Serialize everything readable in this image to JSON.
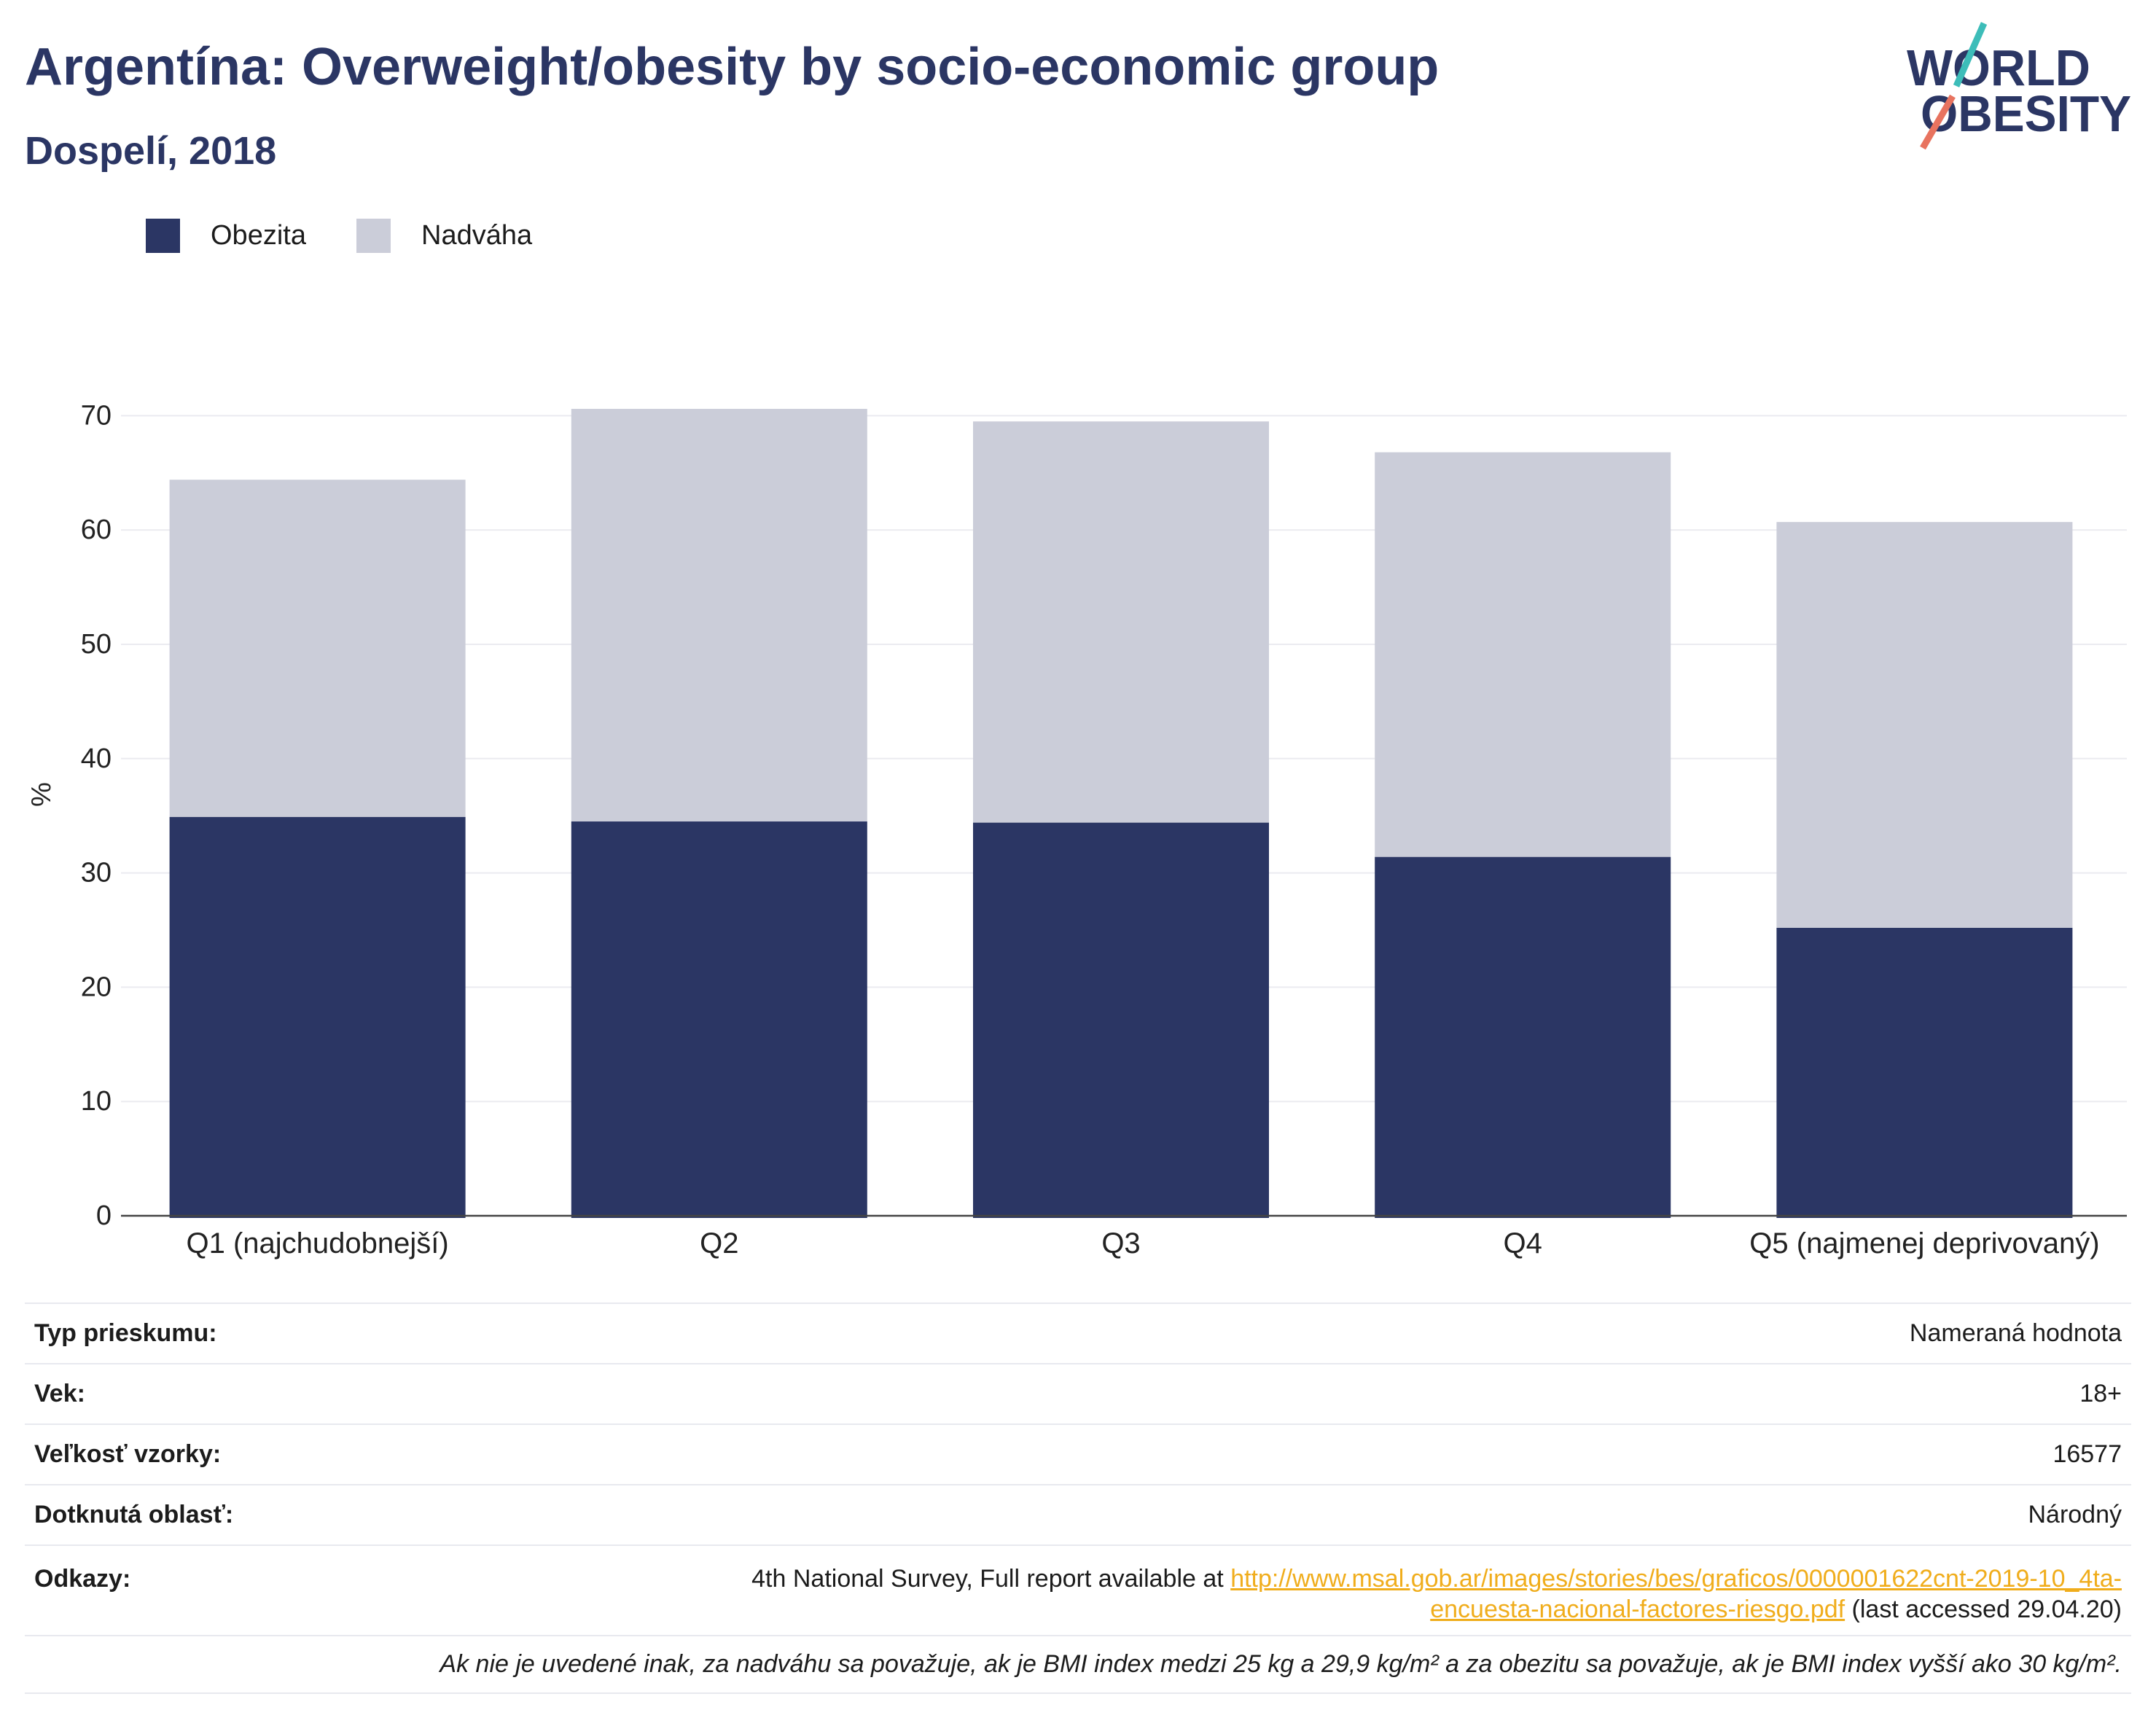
{
  "theme": {
    "navy": "#2b3664",
    "grid": "#ebebf0",
    "axis": "#444444",
    "link": "#f0ad1c"
  },
  "logo": {
    "line1": "WORLD",
    "line2": "OBESITY",
    "teal": "#3dbdb9",
    "coral": "#e8735f"
  },
  "chart_data": {
    "type": "bar",
    "stacked": true,
    "title": "Argentína: Overweight/obesity by socio-economic group",
    "subtitle": "Dospelí, 2018",
    "categories": [
      "Q1 (najchudobnejší)",
      "Q2",
      "Q3",
      "Q4",
      "Q5 (najmenej deprivovaný)"
    ],
    "series": [
      {
        "name": "Obezita",
        "color": "#2b3664",
        "values": [
          34.9,
          34.5,
          34.4,
          31.4,
          25.2
        ]
      },
      {
        "name": "Nadváha",
        "color": "#cbcdd9",
        "values": [
          29.5,
          36.1,
          35.1,
          35.4,
          35.5
        ]
      }
    ],
    "ylabel": "%",
    "ylim": [
      0,
      72
    ],
    "yticks": [
      0,
      10,
      20,
      30,
      40,
      50,
      60,
      70
    ],
    "grid": true,
    "legend_position": "top-left"
  },
  "details": {
    "rows": [
      {
        "label": "Typ prieskumu:",
        "value": "Nameraná hodnota"
      },
      {
        "label": "Vek:",
        "value": "18+"
      },
      {
        "label": "Veľkosť vzorky:",
        "value": "16577"
      },
      {
        "label": "Dotknutá oblasť:",
        "value": "Národný"
      }
    ],
    "references": {
      "label": "Odkazy:",
      "text_before": "4th National Survey, Full report available at ",
      "link": "http://www.msal.gob.ar/images/stories/bes/graficos/0000001622cnt-2019-10_4ta-encuesta-nacional-factores-riesgo.pdf",
      "text_after": " (last accessed 29.04.20)"
    },
    "note": "Ak nie je uvedené inak, za nadváhu sa považuje, ak je BMI index medzi 25 kg a 29,9 kg/m² a za obezitu sa považuje, ak je BMI index vyšší ako 30 kg/m²."
  }
}
